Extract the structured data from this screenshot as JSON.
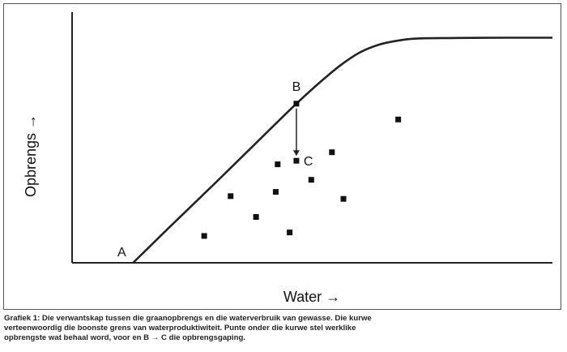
{
  "chart_data": {
    "type": "scatter",
    "title": "",
    "xlabel": "Water →",
    "ylabel": "Opbrengs →",
    "xlim": [
      0,
      100
    ],
    "ylim": [
      0,
      100
    ],
    "grid": false,
    "curve": {
      "points": [
        [
          12.7,
          0
        ],
        [
          20,
          13.7
        ],
        [
          30,
          32.2
        ],
        [
          40,
          51
        ],
        [
          46.7,
          63.5
        ],
        [
          52,
          72.7
        ],
        [
          56,
          79
        ],
        [
          60,
          84
        ],
        [
          64,
          87.1
        ],
        [
          68,
          88.7
        ],
        [
          72,
          89.5
        ],
        [
          80,
          89.7
        ],
        [
          90,
          89.8
        ],
        [
          100,
          89.8
        ]
      ]
    },
    "labeled_points": [
      {
        "label": "A",
        "x": 12.7,
        "y": 0
      },
      {
        "label": "B",
        "x": 46.7,
        "y": 63.5
      },
      {
        "label": "C",
        "x": 46.7,
        "y": 40.7
      }
    ],
    "arrow": {
      "from": "B",
      "to": "C"
    },
    "series": [
      {
        "points": [
          {
            "x": 27.5,
            "y": 10.7
          },
          {
            "x": 33.0,
            "y": 26.6
          },
          {
            "x": 38.3,
            "y": 18.3
          },
          {
            "x": 42.4,
            "y": 28.3
          },
          {
            "x": 42.8,
            "y": 39.3
          },
          {
            "x": 45.3,
            "y": 12.1
          },
          {
            "x": 49.8,
            "y": 33.1
          },
          {
            "x": 46.7,
            "y": 40.7
          },
          {
            "x": 54.1,
            "y": 44.1
          },
          {
            "x": 56.5,
            "y": 25.5
          },
          {
            "x": 67.9,
            "y": 57.2
          }
        ]
      }
    ],
    "caption": "Grafiek 1: Die verwantskap tussen die graanopbrengs en die waterverbruik van gewasse. Die kurwe verteenwoordig die boonste grens van waterproduktiwiteit. Punte onder die kurwe stel werklike opbrengste wat behaal word, voor en B → C die opbrengsgaping."
  }
}
